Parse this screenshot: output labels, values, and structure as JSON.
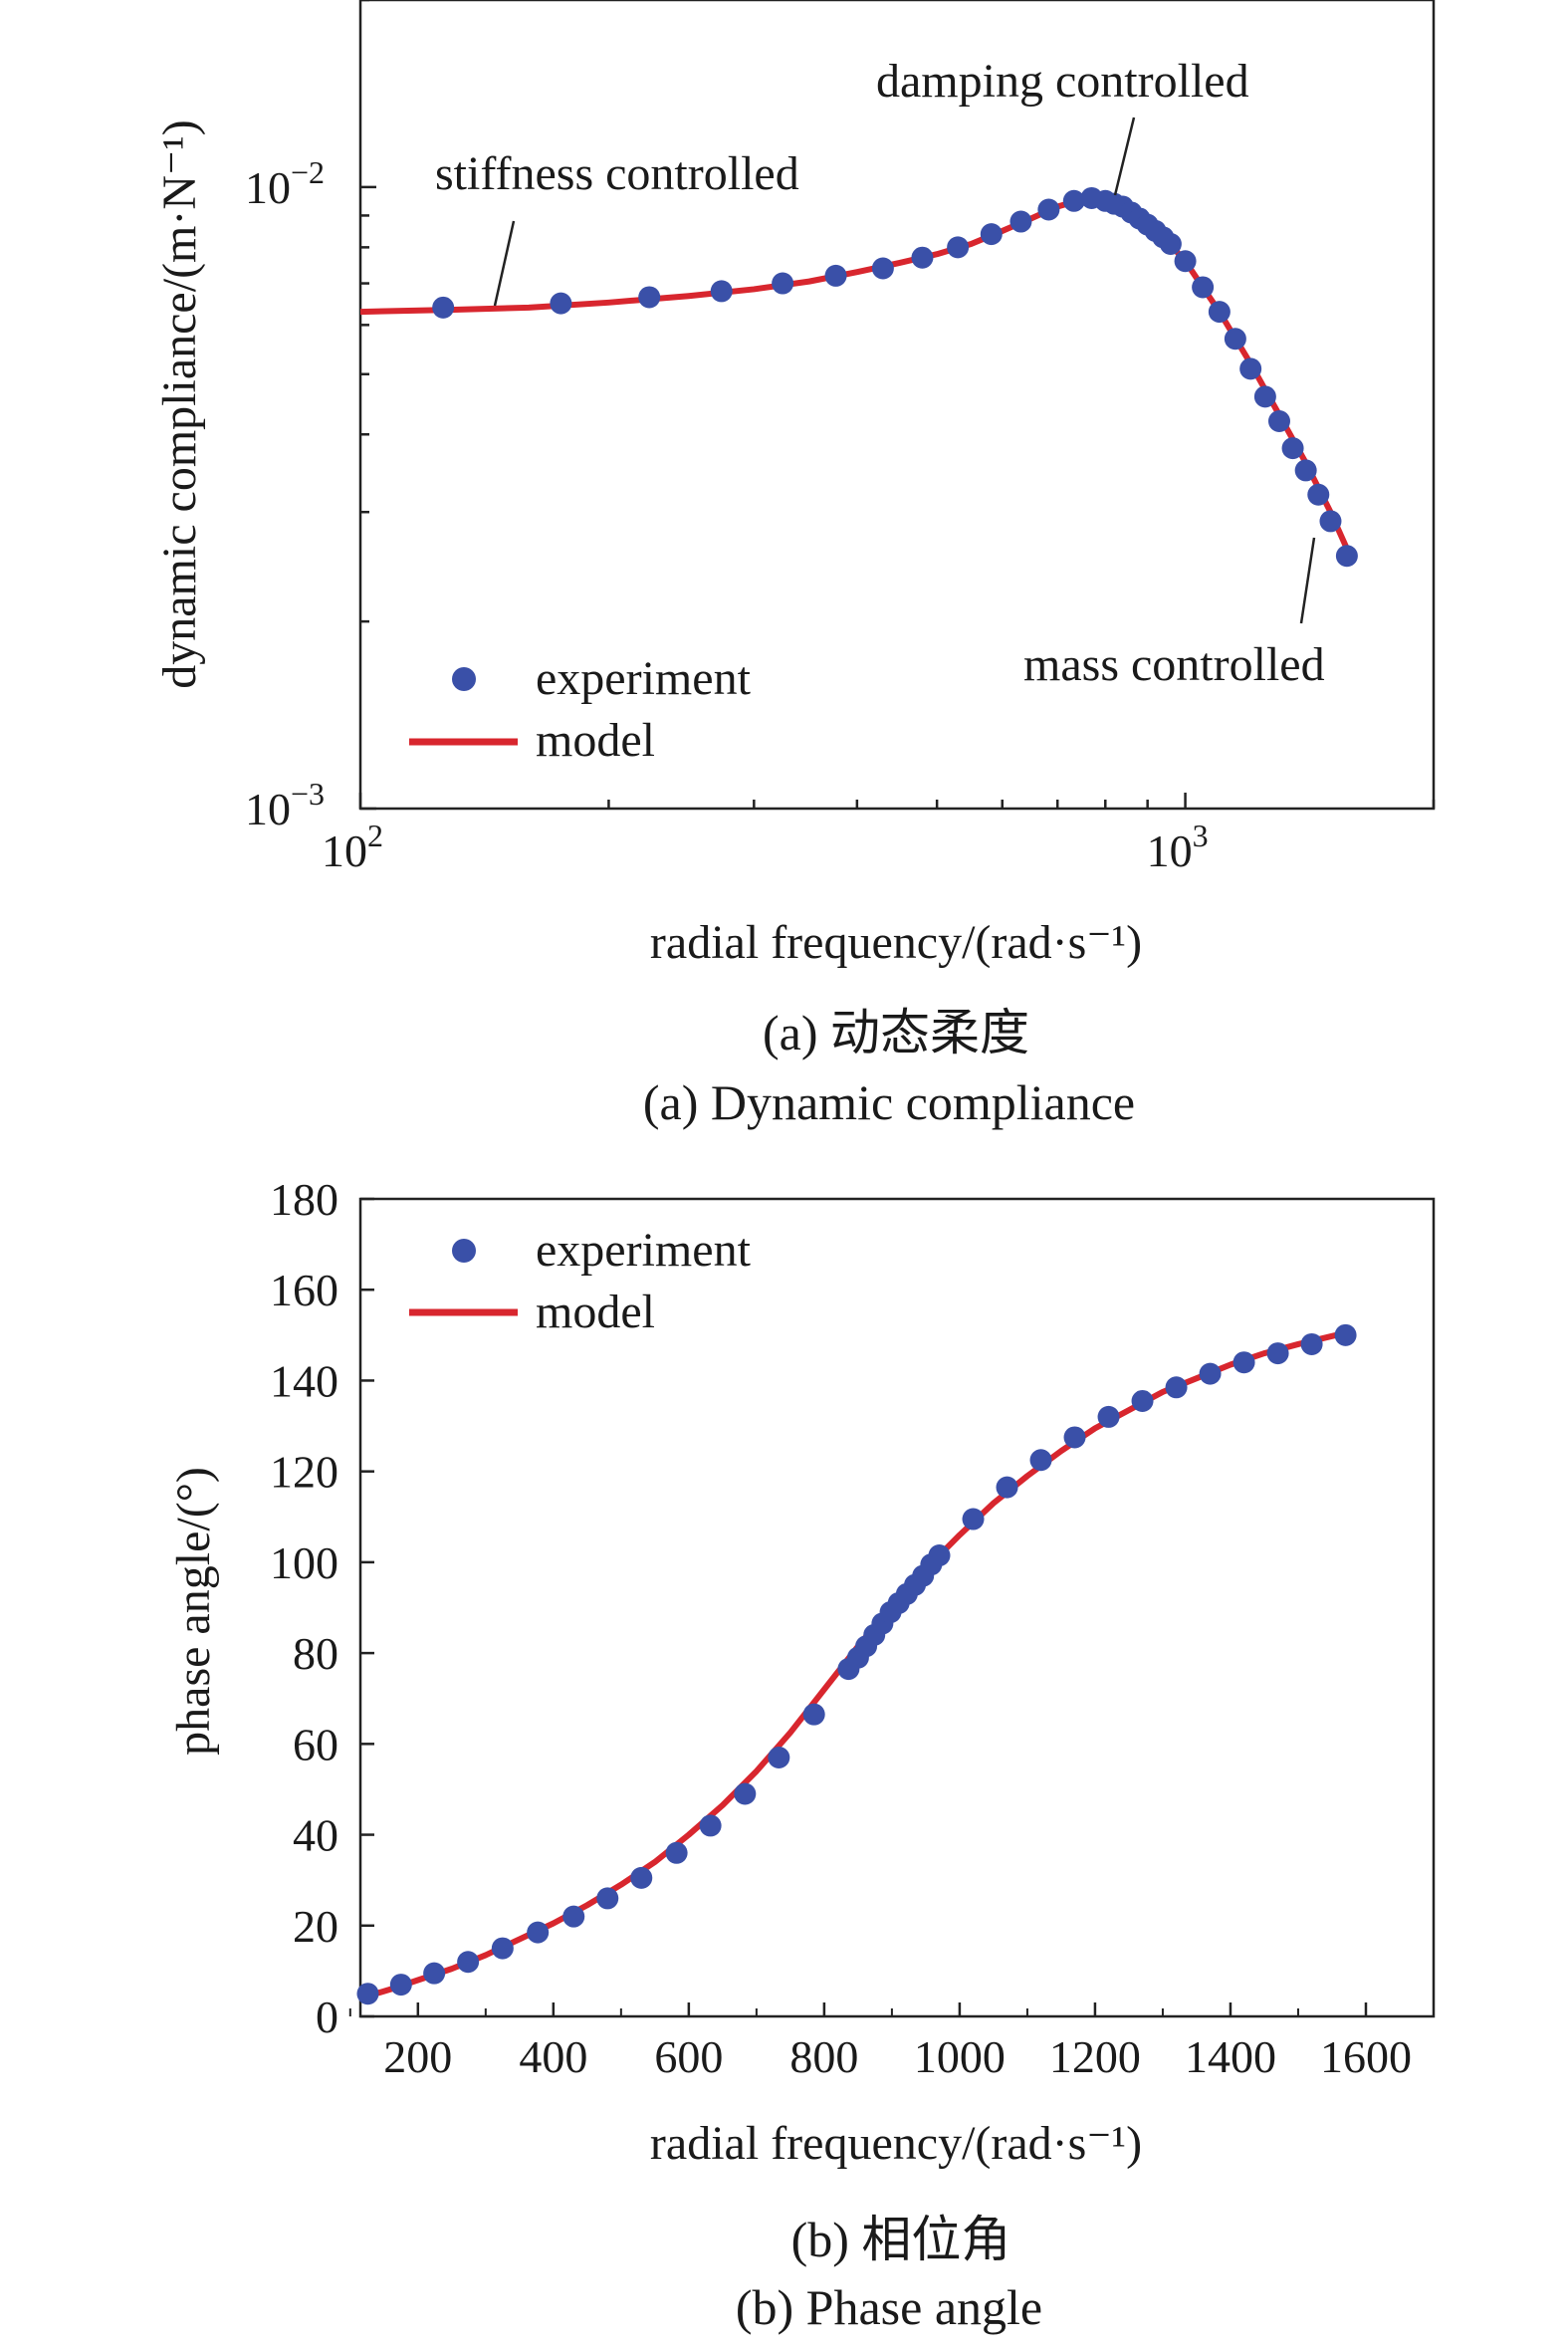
{
  "colors": {
    "experiment": "#3a50a8",
    "model": "#d8262e",
    "axis": "#222222"
  },
  "chart_data": [
    {
      "type": "scatter",
      "panel": "a",
      "xscale": "log",
      "yscale": "log",
      "xlabel": "radial frequency/(rad·s⁻¹)",
      "ylabel": "dynamic compliance/(m·N⁻¹)",
      "xlim": [
        100,
        2000
      ],
      "ylim": [
        0.001,
        0.02
      ],
      "x_ticks": [
        {
          "value": 100,
          "base": "10",
          "exp": "2"
        },
        {
          "value": 1000,
          "base": "10",
          "exp": "3"
        }
      ],
      "y_ticks": [
        {
          "value": 0.001,
          "base": "10",
          "exp": "−3"
        },
        {
          "value": 0.01,
          "base": "10",
          "exp": "−2"
        }
      ],
      "legend": {
        "position": "bottom-left",
        "experiment": "experiment",
        "model": "model"
      },
      "annotations": {
        "stiffness": "stiffness controlled",
        "damping": "damping controlled",
        "mass": "mass controlled"
      },
      "series": [
        {
          "name": "experiment",
          "kind": "markers",
          "x": [
            126,
            175,
            224,
            274,
            325,
            377,
            430,
            480,
            530,
            582,
            632,
            683,
            733,
            770,
            800,
            820,
            840,
            860,
            880,
            900,
            920,
            940,
            960,
            1000,
            1050,
            1100,
            1150,
            1200,
            1250,
            1300,
            1350,
            1400,
            1450,
            1500,
            1570
          ],
          "y": [
            0.0064,
            0.0065,
            0.00665,
            0.0068,
            0.007,
            0.0072,
            0.0074,
            0.0077,
            0.008,
            0.0084,
            0.0088,
            0.0092,
            0.0095,
            0.0096,
            0.0095,
            0.0094,
            0.0093,
            0.0091,
            0.0089,
            0.0087,
            0.0085,
            0.0083,
            0.0081,
            0.0076,
            0.0069,
            0.0063,
            0.0057,
            0.0051,
            0.0046,
            0.0042,
            0.0038,
            0.0035,
            0.0032,
            0.0029,
            0.00255
          ]
        },
        {
          "name": "model",
          "kind": "line",
          "x": [
            100,
            130,
            160,
            200,
            250,
            300,
            350,
            400,
            450,
            500,
            550,
            600,
            650,
            700,
            740,
            770,
            800,
            830,
            860,
            900,
            950,
            1000,
            1050,
            1100,
            1200,
            1300,
            1400,
            1500,
            1570
          ],
          "y": [
            0.0063,
            0.00635,
            0.0064,
            0.00652,
            0.00668,
            0.00685,
            0.00705,
            0.0073,
            0.00755,
            0.0078,
            0.0081,
            0.0085,
            0.0089,
            0.0093,
            0.0095,
            0.0096,
            0.00955,
            0.0094,
            0.0092,
            0.0088,
            0.0082,
            0.0076,
            0.0069,
            0.0063,
            0.0052,
            0.0043,
            0.0036,
            0.003,
            0.00262
          ]
        }
      ]
    },
    {
      "type": "scatter",
      "panel": "b",
      "xlabel": "radial frequency/(rad·s⁻¹)",
      "ylabel": "phase angle/(°)",
      "xlim": [
        115,
        1700
      ],
      "ylim": [
        0,
        180
      ],
      "x_ticks": [
        200,
        400,
        600,
        800,
        1000,
        1200,
        1400,
        1600
      ],
      "y_ticks": [
        0,
        20,
        40,
        60,
        80,
        100,
        120,
        140,
        160,
        180
      ],
      "legend": {
        "position": "top-left",
        "experiment": "experiment",
        "model": "model"
      },
      "series": [
        {
          "name": "experiment",
          "kind": "markers",
          "x": [
            126,
            175,
            224,
            274,
            325,
            377,
            430,
            480,
            530,
            582,
            632,
            683,
            733,
            785,
            836,
            850,
            862,
            874,
            886,
            898,
            910,
            922,
            934,
            946,
            958,
            970,
            1020,
            1070,
            1120,
            1170,
            1220,
            1270,
            1320,
            1370,
            1420,
            1470,
            1520,
            1570
          ],
          "y": [
            5,
            7,
            9.5,
            12,
            15,
            18.5,
            22,
            26,
            30.5,
            36,
            42,
            49,
            57,
            66.5,
            76.5,
            79,
            81.5,
            84,
            86.5,
            89,
            91,
            93,
            95,
            97,
            99.5,
            101.5,
            109.5,
            116.5,
            122.5,
            127.5,
            132,
            135.5,
            138.5,
            141.5,
            144,
            146,
            148,
            150
          ]
        },
        {
          "name": "model",
          "kind": "line",
          "x": [
            115,
            160,
            200,
            250,
            300,
            350,
            400,
            450,
            500,
            550,
            600,
            650,
            700,
            750,
            800,
            850,
            900,
            950,
            1000,
            1050,
            1100,
            1150,
            1200,
            1250,
            1300,
            1350,
            1400,
            1450,
            1500,
            1570
          ],
          "y": [
            4,
            6,
            8,
            10.5,
            13.5,
            17,
            20.5,
            24.5,
            29,
            34,
            40,
            46.5,
            54,
            62.5,
            72,
            81.5,
            90.5,
            98.5,
            106,
            113,
            119,
            124.5,
            129.5,
            133.5,
            137.5,
            140.5,
            143.5,
            146,
            148,
            150.5
          ]
        }
      ]
    }
  ],
  "captions": {
    "a_cn": "(a) 动态柔度",
    "a_en": "(a) Dynamic compliance",
    "b_cn": "(b) 相位角",
    "b_en": "(b) Phase angle"
  }
}
